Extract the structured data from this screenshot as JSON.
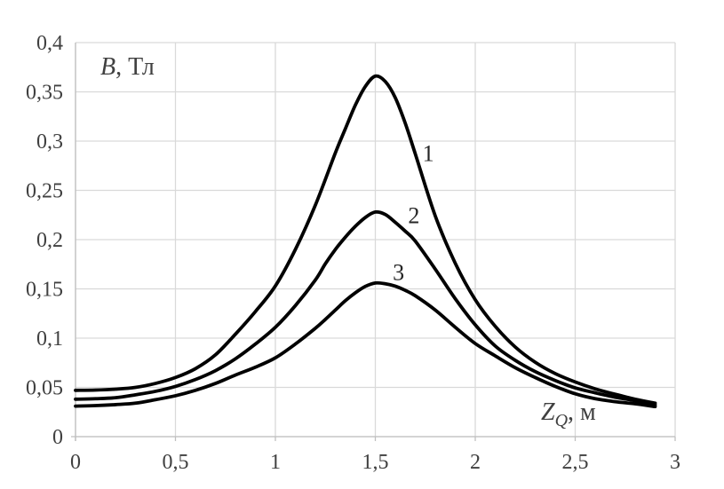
{
  "chart_data": {
    "type": "line",
    "title": "",
    "x_axis": {
      "label": {
        "symbol": "Z",
        "subscript": "Q",
        "rest": ", м"
      },
      "range": [
        0,
        3
      ],
      "ticks": [
        {
          "value": 0,
          "label": "0"
        },
        {
          "value": 0.5,
          "label": "0,5"
        },
        {
          "value": 1,
          "label": "1"
        },
        {
          "value": 1.5,
          "label": "1,5"
        },
        {
          "value": 2,
          "label": "2"
        },
        {
          "value": 2.5,
          "label": "2,5"
        },
        {
          "value": 3,
          "label": "3"
        }
      ]
    },
    "y_axis": {
      "label": {
        "symbol": "B",
        "rest": ", Тл"
      },
      "range": [
        0,
        0.4
      ],
      "ticks": [
        {
          "value": 0,
          "label": "0"
        },
        {
          "value": 0.05,
          "label": "0,05"
        },
        {
          "value": 0.1,
          "label": "0,1"
        },
        {
          "value": 0.15,
          "label": "0,15"
        },
        {
          "value": 0.2,
          "label": "0,2"
        },
        {
          "value": 0.25,
          "label": "0,25"
        },
        {
          "value": 0.3,
          "label": "0,3"
        },
        {
          "value": 0.35,
          "label": "0,35"
        },
        {
          "value": 0.4,
          "label": "0,4"
        }
      ]
    },
    "grid": true,
    "legend": "none",
    "series": [
      {
        "name": "1",
        "peak": {
          "x": 1.5,
          "y": 0.366
        },
        "label_pos": {
          "x": 1.765,
          "y": 0.288
        },
        "points": [
          [
            0.0,
            0.047
          ],
          [
            0.1,
            0.0473
          ],
          [
            0.2,
            0.0482
          ],
          [
            0.3,
            0.05
          ],
          [
            0.4,
            0.054
          ],
          [
            0.5,
            0.06
          ],
          [
            0.6,
            0.069
          ],
          [
            0.7,
            0.083
          ],
          [
            0.8,
            0.104
          ],
          [
            0.9,
            0.127
          ],
          [
            1.0,
            0.153
          ],
          [
            1.1,
            0.19
          ],
          [
            1.2,
            0.235
          ],
          [
            1.3,
            0.288
          ],
          [
            1.35,
            0.3125
          ],
          [
            1.4,
            0.3365
          ],
          [
            1.45,
            0.3555
          ],
          [
            1.5,
            0.366
          ],
          [
            1.55,
            0.3605
          ],
          [
            1.6,
            0.344
          ],
          [
            1.65,
            0.318
          ],
          [
            1.7,
            0.287
          ],
          [
            1.8,
            0.224
          ],
          [
            1.9,
            0.176
          ],
          [
            2.0,
            0.139
          ],
          [
            2.1,
            0.112
          ],
          [
            2.2,
            0.091
          ],
          [
            2.3,
            0.0755
          ],
          [
            2.4,
            0.064
          ],
          [
            2.5,
            0.0555
          ],
          [
            2.6,
            0.0485
          ],
          [
            2.7,
            0.043
          ],
          [
            2.8,
            0.038
          ],
          [
            2.9,
            0.034
          ]
        ]
      },
      {
        "name": "2",
        "peak": {
          "x": 1.5,
          "y": 0.228
        },
        "label_pos": {
          "x": 1.693,
          "y": 0.225
        },
        "points": [
          [
            0.0,
            0.038
          ],
          [
            0.1,
            0.0385
          ],
          [
            0.2,
            0.0395
          ],
          [
            0.3,
            0.0425
          ],
          [
            0.4,
            0.046
          ],
          [
            0.5,
            0.051
          ],
          [
            0.6,
            0.058
          ],
          [
            0.7,
            0.067
          ],
          [
            0.8,
            0.079
          ],
          [
            0.9,
            0.094
          ],
          [
            1.0,
            0.111
          ],
          [
            1.1,
            0.133
          ],
          [
            1.2,
            0.159
          ],
          [
            1.25,
            0.1755
          ],
          [
            1.3,
            0.19
          ],
          [
            1.35,
            0.2025
          ],
          [
            1.4,
            0.2135
          ],
          [
            1.45,
            0.2225
          ],
          [
            1.5,
            0.228
          ],
          [
            1.55,
            0.2255
          ],
          [
            1.6,
            0.2175
          ],
          [
            1.65,
            0.2085
          ],
          [
            1.7,
            0.1985
          ],
          [
            1.8,
            0.17
          ],
          [
            1.9,
            0.14
          ],
          [
            2.0,
            0.1135
          ],
          [
            2.1,
            0.092
          ],
          [
            2.2,
            0.0775
          ],
          [
            2.3,
            0.066
          ],
          [
            2.4,
            0.057
          ],
          [
            2.5,
            0.0495
          ],
          [
            2.6,
            0.0445
          ],
          [
            2.7,
            0.04
          ],
          [
            2.8,
            0.0365
          ],
          [
            2.9,
            0.0322
          ]
        ]
      },
      {
        "name": "3",
        "peak": {
          "x": 1.5,
          "y": 0.156
        },
        "label_pos": {
          "x": 1.616,
          "y": 0.167
        },
        "points": [
          [
            0.0,
            0.031
          ],
          [
            0.1,
            0.0315
          ],
          [
            0.2,
            0.0325
          ],
          [
            0.3,
            0.034
          ],
          [
            0.4,
            0.0375
          ],
          [
            0.5,
            0.0415
          ],
          [
            0.6,
            0.047
          ],
          [
            0.7,
            0.054
          ],
          [
            0.8,
            0.0625
          ],
          [
            0.9,
            0.0705
          ],
          [
            1.0,
            0.08
          ],
          [
            1.1,
            0.094
          ],
          [
            1.2,
            0.11
          ],
          [
            1.25,
            0.119
          ],
          [
            1.3,
            0.1285
          ],
          [
            1.35,
            0.138
          ],
          [
            1.4,
            0.146
          ],
          [
            1.45,
            0.1525
          ],
          [
            1.5,
            0.156
          ],
          [
            1.55,
            0.1552
          ],
          [
            1.6,
            0.1528
          ],
          [
            1.65,
            0.1485
          ],
          [
            1.7,
            0.143
          ],
          [
            1.8,
            0.1285
          ],
          [
            1.9,
            0.111
          ],
          [
            2.0,
            0.0945
          ],
          [
            2.1,
            0.082
          ],
          [
            2.2,
            0.07
          ],
          [
            2.3,
            0.06
          ],
          [
            2.4,
            0.051
          ],
          [
            2.5,
            0.0435
          ],
          [
            2.6,
            0.0385
          ],
          [
            2.7,
            0.0355
          ],
          [
            2.8,
            0.0333
          ],
          [
            2.9,
            0.0305
          ]
        ]
      }
    ],
    "colors": {
      "curve": "#000000",
      "grid": "#d9d9d9",
      "axis": "#bfbfbf",
      "text": "#404040",
      "background": "#ffffff"
    }
  }
}
